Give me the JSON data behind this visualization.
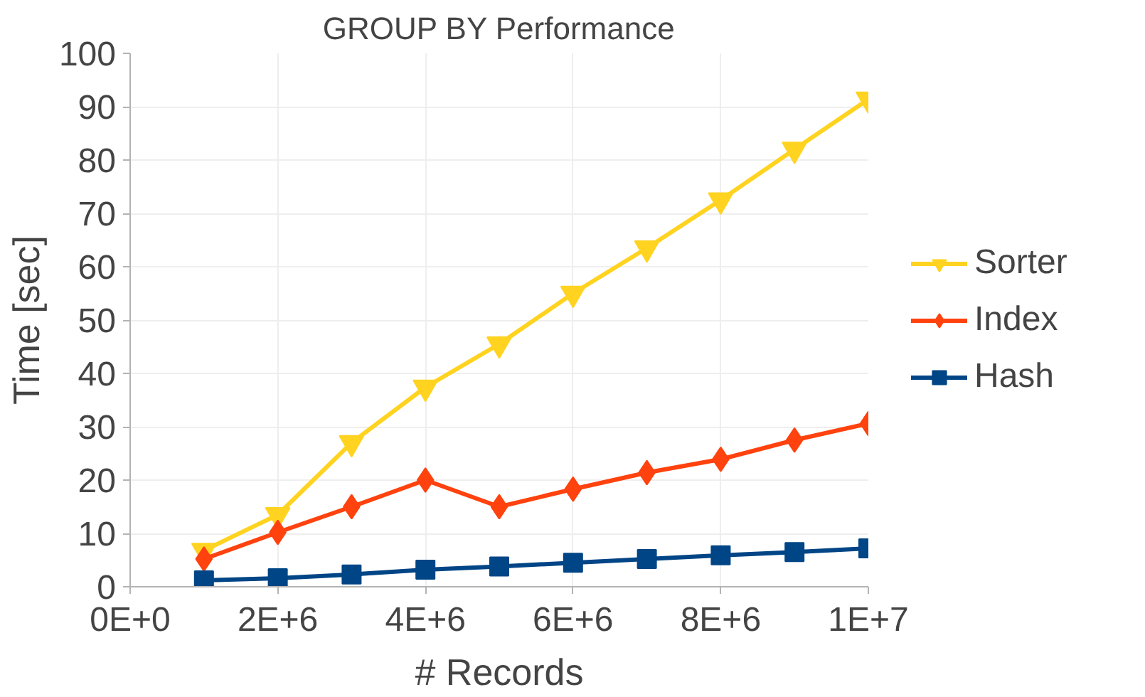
{
  "chart_data": {
    "type": "line",
    "title": "GROUP BY Performance",
    "xlabel": "# Records",
    "ylabel": "Time [sec]",
    "x": [
      1000000,
      2000000,
      3000000,
      4000000,
      5000000,
      6000000,
      7000000,
      8000000,
      9000000,
      10000000
    ],
    "series": [
      {
        "name": "Sorter",
        "color": "#ffd320",
        "marker": "triangle",
        "values": [
          6.8,
          13.5,
          27,
          37.4,
          45.5,
          55,
          63.5,
          72.5,
          82,
          91.4
        ]
      },
      {
        "name": "Index",
        "color": "#ff420e",
        "marker": "diamond",
        "values": [
          5.2,
          10.2,
          15,
          20,
          15,
          18.3,
          21.4,
          23.9,
          27.5,
          30.6
        ]
      },
      {
        "name": "Hash",
        "color": "#004586",
        "marker": "square",
        "values": [
          1.2,
          1.6,
          2.3,
          3.2,
          3.8,
          4.5,
          5.2,
          5.9,
          6.5,
          7.2
        ]
      }
    ],
    "xlim": [
      0,
      10000000
    ],
    "xticks": [
      {
        "value": 0,
        "label": "0E+0"
      },
      {
        "value": 2000000,
        "label": "2E+6"
      },
      {
        "value": 4000000,
        "label": "4E+6"
      },
      {
        "value": 6000000,
        "label": "6E+6"
      },
      {
        "value": 8000000,
        "label": "8E+6"
      },
      {
        "value": 10000000,
        "label": "1E+7"
      }
    ],
    "ylim": [
      0,
      100
    ],
    "yticks": [
      0,
      10,
      20,
      30,
      40,
      50,
      60,
      70,
      80,
      90,
      100
    ],
    "grid": true,
    "legend": "right"
  }
}
